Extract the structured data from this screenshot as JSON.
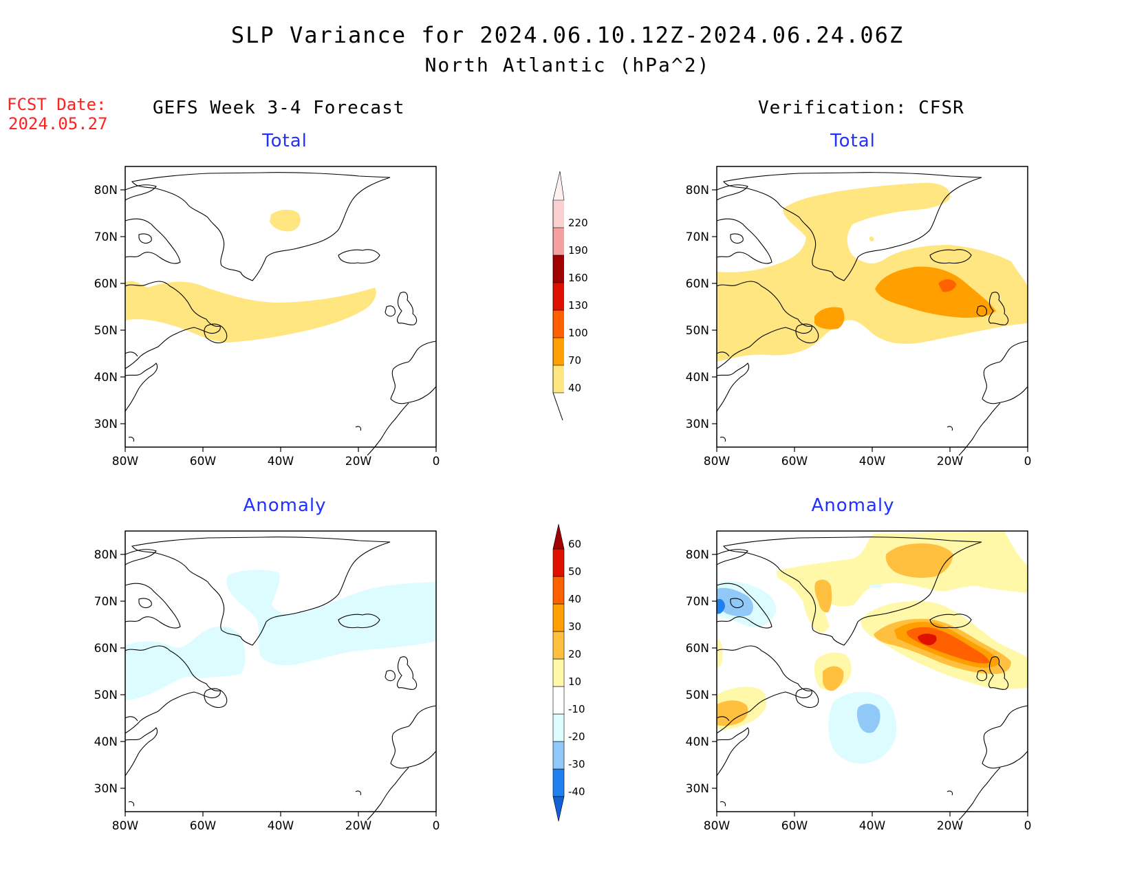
{
  "title": "SLP Variance for 2024.06.10.12Z-2024.06.24.06Z",
  "subtitle": "North Atlantic (hPa^2)",
  "forecast": {
    "label": "FCST Date:",
    "date": "2024.05.27"
  },
  "left_column_title": "GEFS Week 3-4 Forecast",
  "right_column_title": "Verification: CFSR",
  "panels": {
    "gefs_total": "Total",
    "cfsr_total": "Total",
    "gefs_anomaly": "Anomaly",
    "cfsr_anomaly": "Anomaly"
  },
  "axes": {
    "lat_labels": [
      "80N",
      "70N",
      "60N",
      "50N",
      "40N",
      "30N"
    ],
    "lon_labels": [
      "80W",
      "60W",
      "40W",
      "20W",
      "0"
    ],
    "lon_range": [
      -80,
      0
    ],
    "lat_range": [
      25,
      85
    ]
  },
  "total_colorbar": {
    "levels": [
      40,
      70,
      100,
      130,
      160,
      190,
      220
    ],
    "labels": [
      "40",
      "70",
      "100",
      "130",
      "160",
      "190",
      "220"
    ],
    "colors": [
      "#ffe680",
      "#ffa000",
      "#ff6000",
      "#e01000",
      "#a00000",
      "#f4a0a0",
      "#fbd0d0",
      "#fef0f0"
    ]
  },
  "anomaly_colorbar": {
    "levels": [
      -40,
      -30,
      -20,
      -10,
      10,
      20,
      30,
      40,
      50,
      60
    ],
    "labels": [
      "-40",
      "-30",
      "-20",
      "-10",
      "10",
      "20",
      "30",
      "40",
      "50",
      "60"
    ],
    "colors": [
      "#1060d8",
      "#2080f0",
      "#90c8f8",
      "#dcfcff",
      "#ffffff",
      "#fff8a8",
      "#ffc040",
      "#ffa000",
      "#ff6000",
      "#e01000",
      "#a00000"
    ]
  }
}
